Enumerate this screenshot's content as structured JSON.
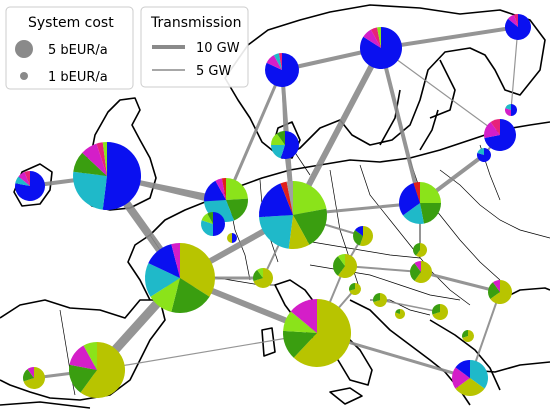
{
  "legend_cost": {
    "title": "System cost",
    "items": [
      {
        "label": "5 bEUR/a",
        "value": 5
      },
      {
        "label": "1 bEUR/a",
        "value": 1
      }
    ]
  },
  "legend_transmission": {
    "title": "Transmission",
    "items": [
      {
        "label": "10 GW",
        "value": 10
      },
      {
        "label": "5 GW",
        "value": 5
      }
    ]
  },
  "colors": {
    "dark_blue": "#0a10f0",
    "cyan": "#1fb9c9",
    "green": "#3a9e10",
    "yellow_green": "#b8c400",
    "light_green": "#8be31a",
    "magenta": "#d41ec8",
    "pink": "#e7227a",
    "red": "#e0201c",
    "grey": "#a0a0a0",
    "line": "#888888",
    "border": "#000000"
  }
}
